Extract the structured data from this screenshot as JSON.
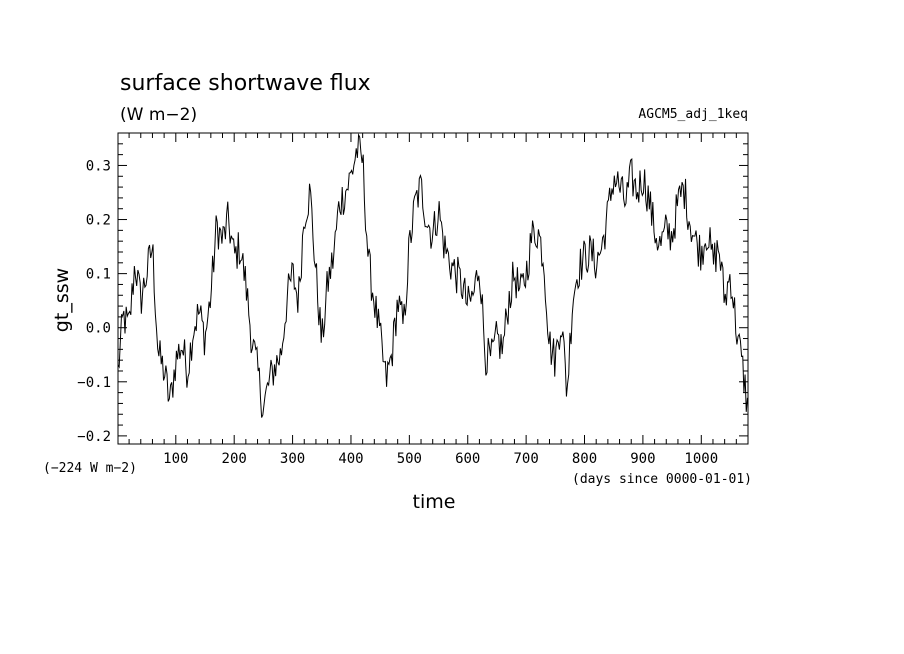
{
  "chart_data": {
    "type": "line",
    "title": "surface shortwave flux",
    "units": "(W m−2)",
    "run_label": "AGCM5_adj_1keq",
    "xlabel": "time",
    "ylabel": "gt_ssw",
    "offset_note": "(−224 W m−2)",
    "x_units_note": "(days since 0000-01-01)",
    "xlim": [
      1,
      1080
    ],
    "ylim": [
      -0.215,
      0.36
    ],
    "x_ticks": [
      100,
      200,
      300,
      400,
      500,
      600,
      700,
      800,
      900,
      1000
    ],
    "y_ticks": [
      -0.2,
      -0.1,
      0.0,
      0.1,
      0.2,
      0.3
    ],
    "y_tick_labels": [
      "−0.2",
      "−0.1",
      "0.0",
      "0.1",
      "0.2",
      "0.3"
    ],
    "grid": false,
    "line_color": "#000000",
    "series": [
      {
        "anchors_x": [
          1,
          10,
          20,
          30,
          40,
          50,
          60,
          70,
          80,
          90,
          100,
          110,
          120,
          130,
          140,
          150,
          160,
          170,
          180,
          190,
          200,
          210,
          220,
          230,
          240,
          250,
          260,
          270,
          280,
          290,
          300,
          310,
          320,
          330,
          340,
          350,
          360,
          370,
          380,
          390,
          400,
          410,
          420,
          430,
          440,
          450,
          460,
          470,
          480,
          490,
          500,
          510,
          520,
          530,
          540,
          550,
          560,
          570,
          580,
          590,
          600,
          610,
          620,
          630,
          640,
          650,
          660,
          670,
          680,
          690,
          700,
          710,
          720,
          730,
          740,
          750,
          760,
          770,
          780,
          790,
          800,
          810,
          820,
          830,
          840,
          850,
          860,
          870,
          880,
          890,
          900,
          910,
          920,
          930,
          940,
          950,
          960,
          970,
          980,
          990,
          1000,
          1010,
          1020,
          1030,
          1040,
          1050,
          1060,
          1070,
          1080
        ],
        "anchors_y": [
          -0.08,
          0.02,
          0.0,
          0.12,
          0.05,
          0.1,
          0.15,
          -0.05,
          -0.08,
          -0.14,
          -0.06,
          -0.03,
          -0.08,
          0.0,
          0.03,
          -0.02,
          0.06,
          0.19,
          0.16,
          0.2,
          0.13,
          0.15,
          0.08,
          -0.02,
          -0.08,
          -0.15,
          -0.1,
          -0.07,
          -0.05,
          0.05,
          0.1,
          0.05,
          0.21,
          0.25,
          0.1,
          -0.03,
          0.08,
          0.13,
          0.23,
          0.25,
          0.28,
          0.33,
          0.31,
          0.12,
          0.05,
          -0.02,
          -0.1,
          -0.05,
          0.05,
          0.0,
          0.15,
          0.23,
          0.26,
          0.2,
          0.17,
          0.22,
          0.15,
          0.12,
          0.1,
          0.08,
          0.04,
          0.06,
          0.12,
          -0.05,
          -0.06,
          -0.02,
          -0.04,
          0.05,
          0.1,
          0.06,
          0.1,
          0.17,
          0.18,
          0.13,
          -0.03,
          -0.06,
          0.02,
          -0.12,
          0.06,
          0.11,
          0.13,
          0.14,
          0.12,
          0.15,
          0.21,
          0.28,
          0.26,
          0.23,
          0.28,
          0.25,
          0.28,
          0.24,
          0.18,
          0.15,
          0.18,
          0.17,
          0.23,
          0.26,
          0.2,
          0.16,
          0.14,
          0.18,
          0.12,
          0.15,
          0.05,
          0.1,
          0.0,
          -0.07,
          -0.15
        ]
      }
    ]
  }
}
